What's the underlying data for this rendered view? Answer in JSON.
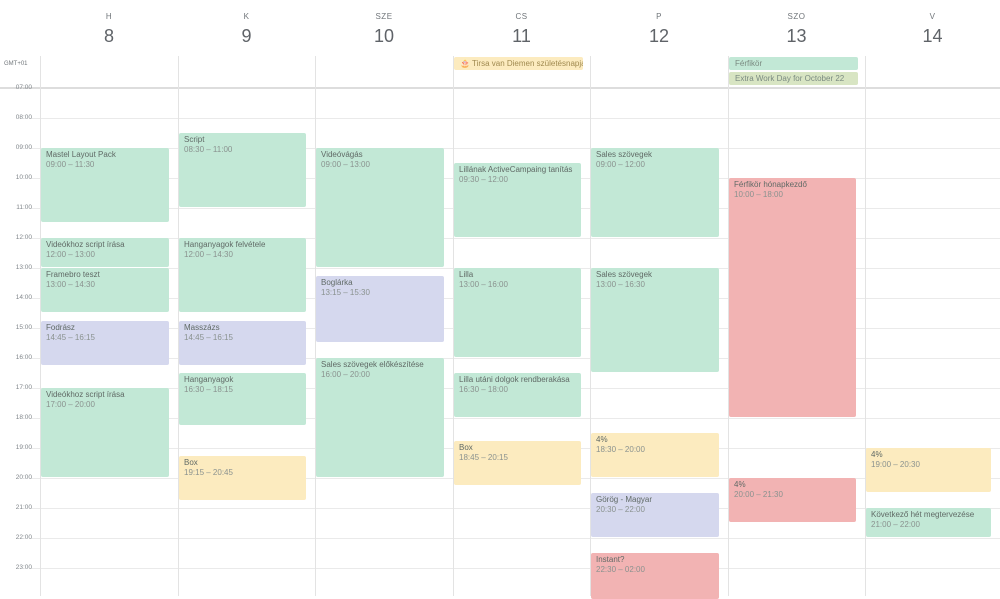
{
  "timezone": "GMT+01",
  "colors": {
    "green": "#c2e8d6",
    "lavender": "#d5d8ee",
    "yellow": "#fcebbf",
    "red": "#f2b3b3",
    "olive": "#d8e5c3"
  },
  "days": [
    {
      "dow": "H",
      "num": "8"
    },
    {
      "dow": "K",
      "num": "9"
    },
    {
      "dow": "SZE",
      "num": "10"
    },
    {
      "dow": "CS",
      "num": "11"
    },
    {
      "dow": "P",
      "num": "12"
    },
    {
      "dow": "SZO",
      "num": "13"
    },
    {
      "dow": "V",
      "num": "14"
    }
  ],
  "hours": [
    "07:00",
    "08:00",
    "09:00",
    "10:00",
    "11:00",
    "12:00",
    "13:00",
    "14:00",
    "15:00",
    "16:00",
    "17:00",
    "18:00",
    "19:00",
    "20:00",
    "21:00",
    "22:00",
    "23:00"
  ],
  "all_day": [
    {
      "day": 3,
      "row": 0,
      "title": "🎂 Tirsa van Diemen születésnapja",
      "color": "yellow"
    },
    {
      "day": 5,
      "row": 0,
      "title": "Férfikör",
      "color": "green"
    },
    {
      "day": 5,
      "row": 1,
      "title": "Extra Work Day for October 22",
      "color": "olive"
    }
  ],
  "events": [
    {
      "day": 0,
      "title": "Mastel Layout Pack",
      "time": "09:00 – 11:30",
      "start": 9,
      "end": 11.5,
      "color": "green"
    },
    {
      "day": 0,
      "title": "Videókhoz script írása",
      "time": "12:00 – 13:00",
      "start": 12,
      "end": 13,
      "color": "green"
    },
    {
      "day": 0,
      "title": "Framebro teszt",
      "time": "13:00 – 14:30",
      "start": 13,
      "end": 14.5,
      "color": "green"
    },
    {
      "day": 0,
      "title": "Fodrász",
      "time": "14:45 – 16:15",
      "start": 14.75,
      "end": 16.25,
      "color": "lavender"
    },
    {
      "day": 0,
      "title": "Videókhoz script írása",
      "time": "17:00 – 20:00",
      "start": 17,
      "end": 20,
      "color": "green"
    },
    {
      "day": 1,
      "title": "Script",
      "time": "08:30 – 11:00",
      "start": 8.5,
      "end": 11,
      "color": "green"
    },
    {
      "day": 1,
      "title": "Hanganyagok felvétele",
      "time": "12:00 – 14:30",
      "start": 12,
      "end": 14.5,
      "color": "green"
    },
    {
      "day": 1,
      "title": "Masszázs",
      "time": "14:45 – 16:15",
      "start": 14.75,
      "end": 16.25,
      "color": "lavender"
    },
    {
      "day": 1,
      "title": "Hanganyagok",
      "time": "16:30 – 18:15",
      "start": 16.5,
      "end": 18.25,
      "color": "green"
    },
    {
      "day": 1,
      "title": "Box",
      "time": "19:15 – 20:45",
      "start": 19.25,
      "end": 20.75,
      "color": "yellow"
    },
    {
      "day": 2,
      "title": "Videóvágás",
      "time": "09:00 – 13:00",
      "start": 9,
      "end": 13,
      "color": "green"
    },
    {
      "day": 2,
      "title": "Boglárka",
      "time": "13:15 – 15:30",
      "start": 13.25,
      "end": 15.5,
      "color": "lavender"
    },
    {
      "day": 2,
      "title": "Sales szövegek előkészítése",
      "time": "16:00 – 20:00",
      "start": 16,
      "end": 20,
      "color": "green"
    },
    {
      "day": 3,
      "title": "Lillának ActiveCampaing tanítás",
      "time": "09:30 – 12:00",
      "start": 9.5,
      "end": 12,
      "color": "green"
    },
    {
      "day": 3,
      "title": "Lilla",
      "time": "13:00 – 16:00",
      "start": 13,
      "end": 16,
      "color": "green"
    },
    {
      "day": 3,
      "title": "Lilla utáni dolgok rendberakása",
      "time": "16:30 – 18:00",
      "start": 16.5,
      "end": 18,
      "color": "green"
    },
    {
      "day": 3,
      "title": "Box",
      "time": "18:45 – 20:15",
      "start": 18.75,
      "end": 20.25,
      "color": "yellow"
    },
    {
      "day": 4,
      "title": "Sales szövegek",
      "time": "09:00 – 12:00",
      "start": 9,
      "end": 12,
      "color": "green"
    },
    {
      "day": 4,
      "title": "Sales szövegek",
      "time": "13:00 – 16:30",
      "start": 13,
      "end": 16.5,
      "color": "green"
    },
    {
      "day": 4,
      "title": "4%",
      "time": "18:30 – 20:00",
      "start": 18.5,
      "end": 20,
      "color": "yellow"
    },
    {
      "day": 4,
      "title": "Görög - Magyar",
      "time": "20:30 – 22:00",
      "start": 20.5,
      "end": 22,
      "color": "lavender"
    },
    {
      "day": 4,
      "title": "Instant?",
      "time": "22:30 – 02:00",
      "start": 22.5,
      "end": 24.5,
      "color": "red"
    },
    {
      "day": 5,
      "title": "Férfikör hónapkezdő",
      "time": "10:00 – 18:00",
      "start": 10,
      "end": 18,
      "color": "red"
    },
    {
      "day": 5,
      "title": "4%",
      "time": "20:00 – 21:30",
      "start": 20,
      "end": 21.5,
      "color": "red"
    },
    {
      "day": 6,
      "title": "4%",
      "time": "19:00 – 20:30",
      "start": 19,
      "end": 20.5,
      "color": "yellow"
    },
    {
      "day": 6,
      "title": "Következő hét megtervezése",
      "time": "21:00 – 22:00",
      "start": 21,
      "end": 22,
      "color": "green"
    }
  ]
}
